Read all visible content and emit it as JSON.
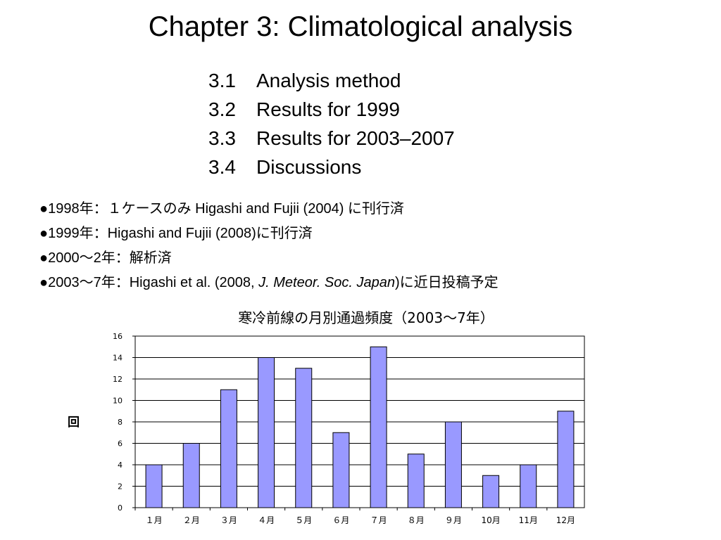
{
  "slide": {
    "title": "Chapter 3: Climatological analysis",
    "toc": [
      {
        "num": "3.1",
        "text": "Analysis method"
      },
      {
        "num": "3.2",
        "text": "Results for 1999"
      },
      {
        "num": "3.3",
        "text": "Results for 2003–2007"
      },
      {
        "num": "3.4",
        "text": "Discussions"
      }
    ],
    "bullet_symbol": "●",
    "bullets": [
      {
        "pre": "1998年：１ケースのみ Higashi and Fujii (2004) に刊行済",
        "ital": "",
        "post": ""
      },
      {
        "pre": "1999年：Higashi and Fujii (2008)に刊行済",
        "ital": "",
        "post": ""
      },
      {
        "pre": "2000～2年：解析済",
        "ital": "",
        "post": ""
      },
      {
        "pre": "2003～7年：Higashi et al. (2008, ",
        "ital": "J. Meteor. Soc. Japan",
        "post": ")に近日投稿予定"
      }
    ]
  },
  "colors": {
    "bar_fill": "#9999ff",
    "bar_stroke": "#000000",
    "grid": "#000000"
  },
  "chart_data": {
    "type": "bar",
    "title": "寒冷前線の月別通過頻度（2003～7年）",
    "ylabel": "回",
    "xlabel": "",
    "categories": [
      "１月",
      "２月",
      "３月",
      "４月",
      "５月",
      "６月",
      "７月",
      "８月",
      "９月",
      "10月",
      "11月",
      "12月"
    ],
    "values": [
      4,
      6,
      11,
      14,
      13,
      7,
      15,
      5,
      8,
      3,
      4,
      9
    ],
    "ylim": [
      0,
      16
    ],
    "yticks": [
      0,
      2,
      4,
      6,
      8,
      10,
      12,
      14,
      16
    ],
    "grid": true,
    "legend": "none"
  }
}
